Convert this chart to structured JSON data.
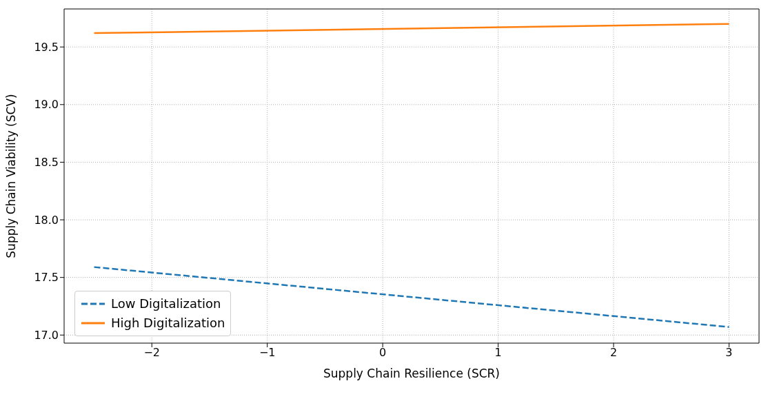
{
  "chart_data": {
    "type": "line",
    "xlabel": "Supply Chain Resilience (SCR)",
    "ylabel": "Supply Chain Viability (SCV)",
    "x": [
      -2.5,
      3
    ],
    "series": [
      {
        "name": "Low Digitalization",
        "color": "#1f77b4",
        "values": [
          17.59,
          17.07
        ],
        "line_style": "dashed"
      },
      {
        "name": "High Digitalization",
        "color": "#ff7f0e",
        "values": [
          19.62,
          19.7
        ],
        "line_style": "solid"
      }
    ],
    "xlim": [
      -2.76,
      3.26
    ],
    "xticks": [
      {
        "value": -2,
        "label": "−2"
      },
      {
        "value": -1,
        "label": "−1"
      },
      0,
      1,
      2,
      3
    ],
    "ylim": [
      16.93,
      19.83
    ],
    "yticks": [
      {
        "value": 17,
        "label": "17.0"
      },
      17.5,
      {
        "value": 18,
        "label": "18.0"
      },
      18.5,
      {
        "value": 19,
        "label": "19.0"
      },
      19.5
    ],
    "grid": true,
    "legend": "bottom left",
    "marker": "none"
  }
}
